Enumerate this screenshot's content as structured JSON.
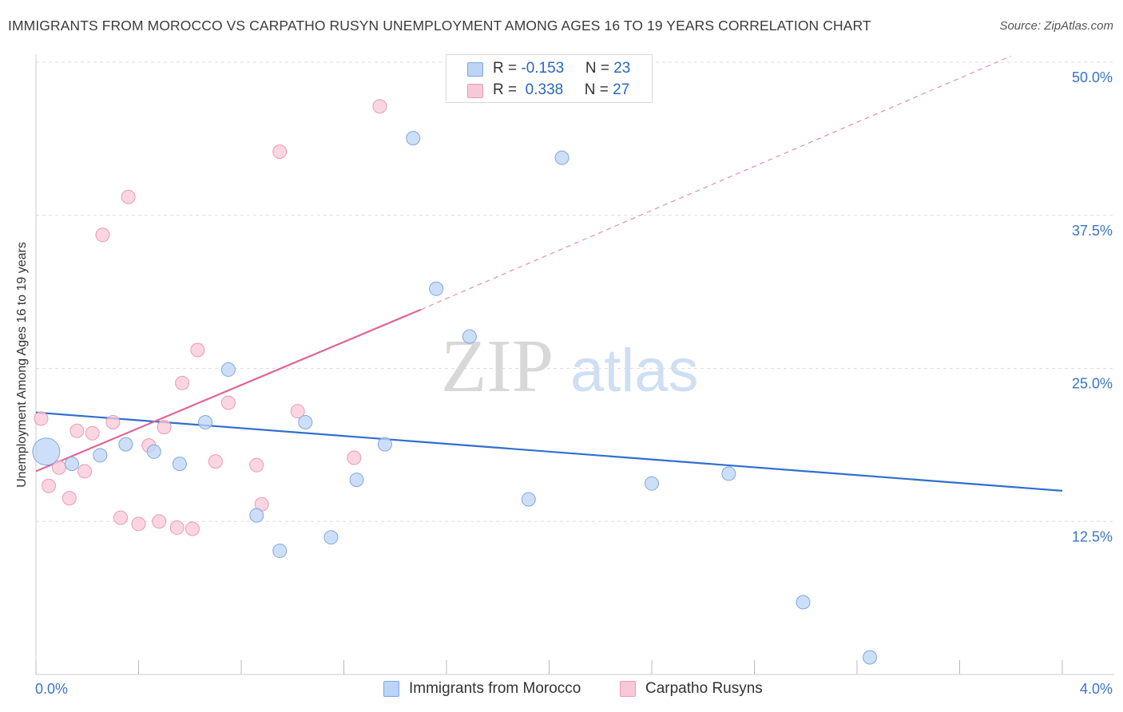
{
  "title": "IMMIGRANTS FROM MOROCCO VS CARPATHO RUSYN UNEMPLOYMENT AMONG AGES 16 TO 19 YEARS CORRELATION CHART",
  "source": "Source: ZipAtlas.com",
  "watermark": {
    "zip": "ZIP",
    "atlas": "atlas"
  },
  "legend": {
    "rows": [
      {
        "r_label": "R = ",
        "r_value": "-0.153",
        "n_label": "N = ",
        "n_value": "23"
      },
      {
        "r_label": "R = ",
        "r_value": " 0.338",
        "n_label": "N = ",
        "n_value": "27"
      }
    ]
  },
  "bottom_legend": [
    "Immigrants from Morocco",
    "Carpatho Rusyns"
  ],
  "colors": {
    "blue_fill": "#bcd4f5",
    "blue_stroke": "#7fa8df",
    "blue_line": "#2f6fd0",
    "pink_fill": "#f9c8d8",
    "pink_stroke": "#eb9ab5",
    "pink_line": "#e06790",
    "tick_label": "#3a74c8",
    "grid": "#dddddd"
  },
  "chart_data": {
    "type": "scatter",
    "title": "IMMIGRANTS FROM MOROCCO VS CARPATHO RUSYN UNEMPLOYMENT AMONG AGES 16 TO 19 YEARS CORRELATION CHART",
    "xlabel": "",
    "ylabel": "Unemployment Among Ages 16 to 19 years",
    "xlim": [
      0,
      4.0
    ],
    "ylim": [
      0,
      50
    ],
    "x_tick_labels": [
      "0.0%",
      "4.0%"
    ],
    "y_ticks": [
      12.5,
      25.0,
      37.5,
      50.0
    ],
    "y_tick_labels": [
      "12.5%",
      "25.0%",
      "37.5%",
      "50.0%"
    ],
    "legend_position": "top-center",
    "series": [
      {
        "name": "Immigrants from Morocco",
        "color": "blue",
        "r": -0.153,
        "n": 23,
        "points": [
          {
            "x": 0.04,
            "y": 18.2,
            "size": "large"
          },
          {
            "x": 0.14,
            "y": 17.2
          },
          {
            "x": 0.25,
            "y": 17.9
          },
          {
            "x": 0.35,
            "y": 18.8
          },
          {
            "x": 0.46,
            "y": 18.2
          },
          {
            "x": 0.56,
            "y": 17.2
          },
          {
            "x": 0.66,
            "y": 20.6
          },
          {
            "x": 0.75,
            "y": 24.9
          },
          {
            "x": 0.86,
            "y": 13.0
          },
          {
            "x": 0.95,
            "y": 10.1
          },
          {
            "x": 1.05,
            "y": 20.6
          },
          {
            "x": 1.15,
            "y": 11.2
          },
          {
            "x": 1.25,
            "y": 15.9
          },
          {
            "x": 1.36,
            "y": 18.8
          },
          {
            "x": 1.47,
            "y": 43.8
          },
          {
            "x": 1.56,
            "y": 31.5
          },
          {
            "x": 1.69,
            "y": 27.6
          },
          {
            "x": 1.92,
            "y": 14.3
          },
          {
            "x": 2.05,
            "y": 42.2
          },
          {
            "x": 2.4,
            "y": 15.6
          },
          {
            "x": 2.7,
            "y": 16.4
          },
          {
            "x": 2.99,
            "y": 5.9
          },
          {
            "x": 3.25,
            "y": 1.4
          }
        ],
        "trendline": {
          "x": [
            0.0,
            4.0
          ],
          "y": [
            21.4,
            15.0
          ]
        }
      },
      {
        "name": "Carpatho Rusyns",
        "color": "pink",
        "r": 0.338,
        "n": 27,
        "points": [
          {
            "x": 0.02,
            "y": 20.9
          },
          {
            "x": 0.05,
            "y": 15.4
          },
          {
            "x": 0.09,
            "y": 16.9
          },
          {
            "x": 0.13,
            "y": 14.4
          },
          {
            "x": 0.16,
            "y": 19.9
          },
          {
            "x": 0.19,
            "y": 16.6
          },
          {
            "x": 0.22,
            "y": 19.7
          },
          {
            "x": 0.26,
            "y": 35.9
          },
          {
            "x": 0.3,
            "y": 20.6
          },
          {
            "x": 0.33,
            "y": 12.8
          },
          {
            "x": 0.36,
            "y": 39.0
          },
          {
            "x": 0.4,
            "y": 12.3
          },
          {
            "x": 0.44,
            "y": 18.7
          },
          {
            "x": 0.48,
            "y": 12.5
          },
          {
            "x": 0.5,
            "y": 20.2
          },
          {
            "x": 0.55,
            "y": 12.0
          },
          {
            "x": 0.57,
            "y": 23.8
          },
          {
            "x": 0.61,
            "y": 11.9
          },
          {
            "x": 0.63,
            "y": 26.5
          },
          {
            "x": 0.7,
            "y": 17.4
          },
          {
            "x": 0.75,
            "y": 22.2
          },
          {
            "x": 0.86,
            "y": 17.1
          },
          {
            "x": 0.88,
            "y": 13.9
          },
          {
            "x": 0.95,
            "y": 42.7
          },
          {
            "x": 1.02,
            "y": 21.5
          },
          {
            "x": 1.24,
            "y": 17.7
          },
          {
            "x": 1.34,
            "y": 46.4
          }
        ],
        "trendline": {
          "x": [
            0.0,
            1.5
          ],
          "y": [
            16.6,
            29.8
          ]
        },
        "trendline_extension": {
          "x": [
            1.5,
            3.8
          ],
          "y": [
            29.8,
            50.5
          ]
        }
      }
    ]
  }
}
